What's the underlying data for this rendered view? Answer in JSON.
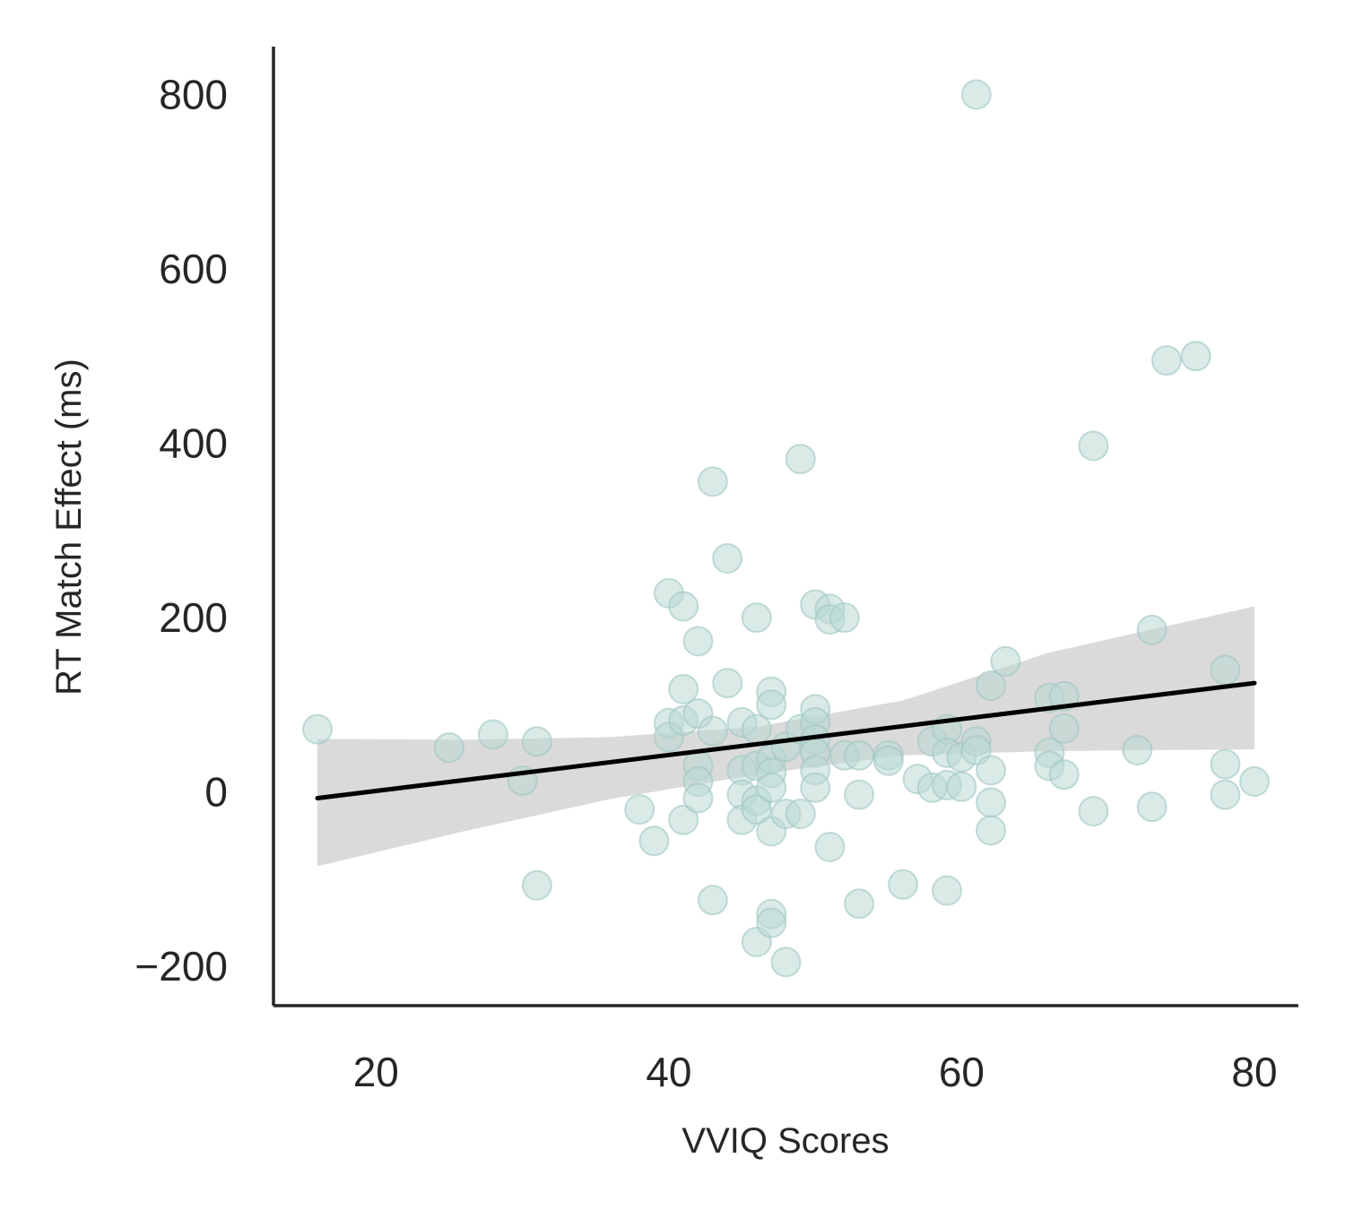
{
  "chart_data": {
    "type": "scatter",
    "title": "",
    "xlabel": "VVIQ Scores",
    "ylabel": "RT Match Effect (ms)",
    "xlim": [
      13,
      83
    ],
    "ylim": [
      -245,
      855
    ],
    "x_ticks": [
      20,
      40,
      60,
      80
    ],
    "y_ticks": [
      -200,
      0,
      200,
      400,
      600,
      800
    ],
    "x_tick_labels": [
      "20",
      "40",
      "60",
      "80"
    ],
    "y_tick_labels": [
      "−200",
      "0",
      "200",
      "400",
      "600",
      "800"
    ],
    "grid": false,
    "legend": "none",
    "colors": {
      "points": "#b9d8d4",
      "points_edge": "#9ec7c2",
      "regression_line": "#000000",
      "confidence_band": "#d3d3d3",
      "axes": "#262626"
    },
    "regression": {
      "x": [
        16,
        80
      ],
      "y": [
        -7,
        125
      ]
    },
    "confidence_band": {
      "x": [
        16,
        26,
        36,
        46,
        56,
        66,
        80
      ],
      "lower": [
        -85,
        -45,
        -8,
        20,
        42,
        47,
        49
      ],
      "upper": [
        61,
        60,
        63,
        75,
        105,
        160,
        213
      ]
    },
    "points": [
      {
        "x": 16,
        "y": 72
      },
      {
        "x": 25,
        "y": 51
      },
      {
        "x": 28,
        "y": 66
      },
      {
        "x": 30,
        "y": 13
      },
      {
        "x": 31,
        "y": 58
      },
      {
        "x": 31,
        "y": -107
      },
      {
        "x": 38,
        "y": -20
      },
      {
        "x": 39,
        "y": -56
      },
      {
        "x": 40,
        "y": 228
      },
      {
        "x": 40,
        "y": 79
      },
      {
        "x": 40,
        "y": 63
      },
      {
        "x": 41,
        "y": 213
      },
      {
        "x": 41,
        "y": 118
      },
      {
        "x": 41,
        "y": 82
      },
      {
        "x": 41,
        "y": -32
      },
      {
        "x": 42,
        "y": 173
      },
      {
        "x": 42,
        "y": 90
      },
      {
        "x": 42,
        "y": 30
      },
      {
        "x": 42,
        "y": 12
      },
      {
        "x": 42,
        "y": -7
      },
      {
        "x": 43,
        "y": 356
      },
      {
        "x": 43,
        "y": 70
      },
      {
        "x": 43,
        "y": -124
      },
      {
        "x": 44,
        "y": 268
      },
      {
        "x": 44,
        "y": 125
      },
      {
        "x": 45,
        "y": 80
      },
      {
        "x": 45,
        "y": 25
      },
      {
        "x": 45,
        "y": -3
      },
      {
        "x": 45,
        "y": -32
      },
      {
        "x": 46,
        "y": 200
      },
      {
        "x": 46,
        "y": 72
      },
      {
        "x": 46,
        "y": 30
      },
      {
        "x": 46,
        "y": -10
      },
      {
        "x": 46,
        "y": -20
      },
      {
        "x": 46,
        "y": -172
      },
      {
        "x": 47,
        "y": 115
      },
      {
        "x": 47,
        "y": 100
      },
      {
        "x": 47,
        "y": 38
      },
      {
        "x": 47,
        "y": 22
      },
      {
        "x": 47,
        "y": 5
      },
      {
        "x": 47,
        "y": -45
      },
      {
        "x": 47,
        "y": -140
      },
      {
        "x": 47,
        "y": -150
      },
      {
        "x": 48,
        "y": 52
      },
      {
        "x": 48,
        "y": -25
      },
      {
        "x": 48,
        "y": -195
      },
      {
        "x": 49,
        "y": 382
      },
      {
        "x": 49,
        "y": 72
      },
      {
        "x": 49,
        "y": -25
      },
      {
        "x": 50,
        "y": 215
      },
      {
        "x": 50,
        "y": 95
      },
      {
        "x": 50,
        "y": 80
      },
      {
        "x": 50,
        "y": 60
      },
      {
        "x": 50,
        "y": 45
      },
      {
        "x": 50,
        "y": 25
      },
      {
        "x": 50,
        "y": 5
      },
      {
        "x": 51,
        "y": 210
      },
      {
        "x": 51,
        "y": 198
      },
      {
        "x": 51,
        "y": -63
      },
      {
        "x": 52,
        "y": 200
      },
      {
        "x": 52,
        "y": 42
      },
      {
        "x": 53,
        "y": 42
      },
      {
        "x": 53,
        "y": -3
      },
      {
        "x": 53,
        "y": -128
      },
      {
        "x": 55,
        "y": 42
      },
      {
        "x": 55,
        "y": 36
      },
      {
        "x": 56,
        "y": -106
      },
      {
        "x": 57,
        "y": 15
      },
      {
        "x": 58,
        "y": 58
      },
      {
        "x": 58,
        "y": 5
      },
      {
        "x": 59,
        "y": 72
      },
      {
        "x": 59,
        "y": 45
      },
      {
        "x": 59,
        "y": 8
      },
      {
        "x": 59,
        "y": -113
      },
      {
        "x": 60,
        "y": 40
      },
      {
        "x": 60,
        "y": 6
      },
      {
        "x": 61,
        "y": 800
      },
      {
        "x": 61,
        "y": 58
      },
      {
        "x": 61,
        "y": 48
      },
      {
        "x": 62,
        "y": 122
      },
      {
        "x": 62,
        "y": 25
      },
      {
        "x": 62,
        "y": -12
      },
      {
        "x": 62,
        "y": -44
      },
      {
        "x": 63,
        "y": 150
      },
      {
        "x": 66,
        "y": 108
      },
      {
        "x": 66,
        "y": 45
      },
      {
        "x": 66,
        "y": 30
      },
      {
        "x": 67,
        "y": 110
      },
      {
        "x": 67,
        "y": 73
      },
      {
        "x": 67,
        "y": 20
      },
      {
        "x": 69,
        "y": 397
      },
      {
        "x": 69,
        "y": -22
      },
      {
        "x": 72,
        "y": 48
      },
      {
        "x": 73,
        "y": 186
      },
      {
        "x": 73,
        "y": -17
      },
      {
        "x": 74,
        "y": 495
      },
      {
        "x": 76,
        "y": 500
      },
      {
        "x": 78,
        "y": 140
      },
      {
        "x": 78,
        "y": 32
      },
      {
        "x": 78,
        "y": -3
      },
      {
        "x": 80,
        "y": 12
      }
    ]
  }
}
